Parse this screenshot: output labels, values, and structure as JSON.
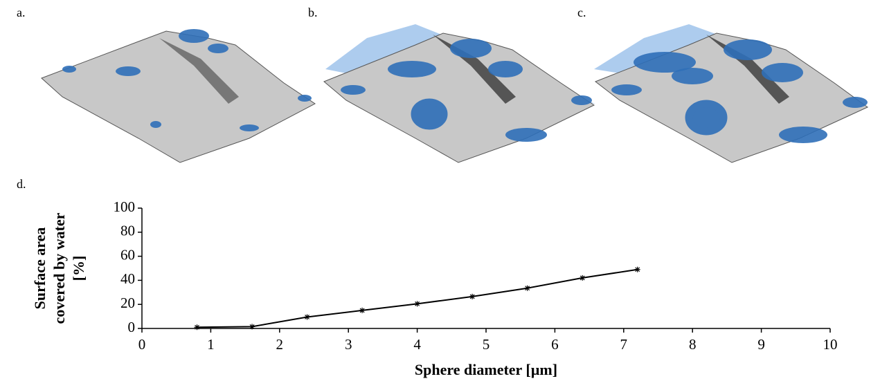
{
  "panel_labels": [
    "a.",
    "b.",
    "c.",
    "d."
  ],
  "chart_data": {
    "type": "line",
    "x": [
      0.8,
      1.6,
      2.4,
      3.2,
      4.0,
      4.8,
      5.6,
      6.4,
      7.2
    ],
    "values": [
      1,
      1.5,
      9.5,
      15,
      20.5,
      26.5,
      33.5,
      42,
      49
    ],
    "color": "#000000",
    "marker": "star",
    "xlabel": "Sphere diameter [µm]",
    "ylabel": [
      "Surface area",
      "covered by water",
      "[%]"
    ],
    "xlim": [
      0,
      10
    ],
    "xticks": [
      0,
      1,
      2,
      3,
      4,
      5,
      6,
      7,
      8,
      9,
      10
    ],
    "ylim": [
      0,
      100
    ],
    "yticks": [
      0,
      20,
      40,
      60,
      80,
      100
    ],
    "grid": false
  }
}
